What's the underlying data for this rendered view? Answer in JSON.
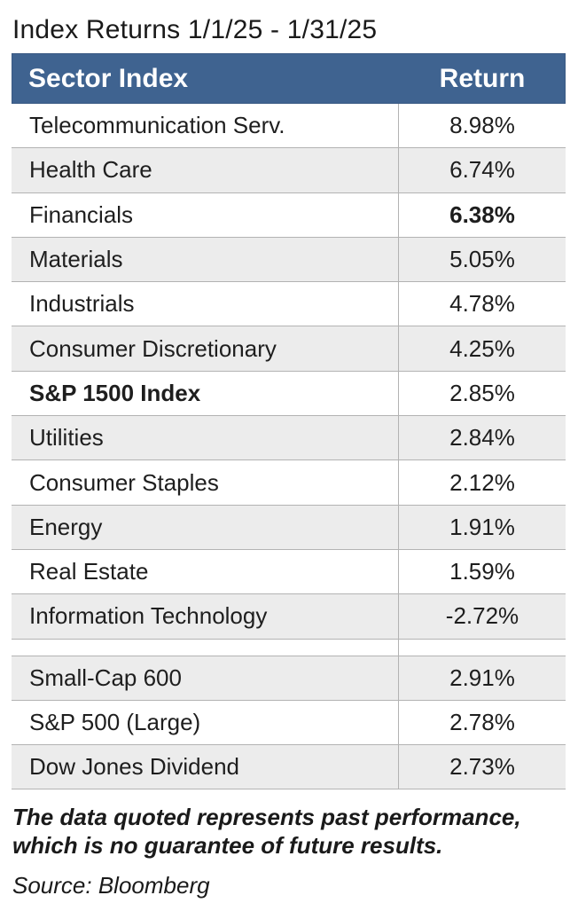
{
  "title": "Index Returns 1/1/25 - 1/31/25",
  "table": {
    "headers": {
      "sector": "Sector Index",
      "return": "Return"
    },
    "rows": [
      {
        "name": "Telecommunication Serv.",
        "value": "8.98%"
      },
      {
        "name": "Health Care",
        "value": "6.74%"
      },
      {
        "name": "Financials",
        "value": "6.38%"
      },
      {
        "name": "Materials",
        "value": "5.05%"
      },
      {
        "name": "Industrials",
        "value": "4.78%"
      },
      {
        "name": "Consumer Discretionary",
        "value": "4.25%"
      },
      {
        "name": "S&P 1500 Index",
        "value": "2.85%"
      },
      {
        "name": "Utilities",
        "value": "2.84%"
      },
      {
        "name": "Consumer Staples",
        "value": "2.12%"
      },
      {
        "name": "Energy",
        "value": "1.91%"
      },
      {
        "name": "Real Estate",
        "value": "1.59%"
      },
      {
        "name": "Information Technology",
        "value": "-2.72%"
      }
    ],
    "extra_rows": [
      {
        "name": "Small-Cap 600",
        "value": "2.91%"
      },
      {
        "name": "S&P 500 (Large)",
        "value": "2.78%"
      },
      {
        "name": "Dow Jones Dividend",
        "value": "2.73%"
      }
    ]
  },
  "disclaimer_line1": "The data quoted represents past performance,",
  "disclaimer_line2": "which is no guarantee of future results.",
  "source": "Source: Bloomberg"
}
